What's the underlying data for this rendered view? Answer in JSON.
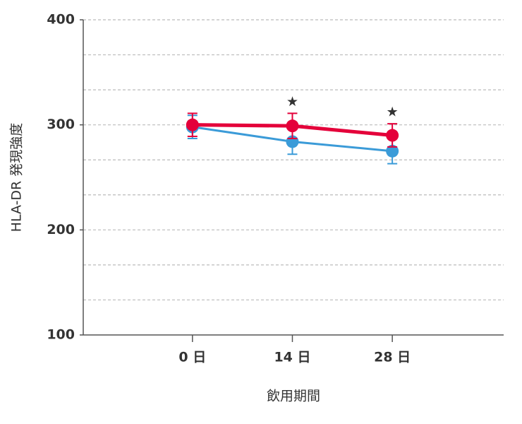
{
  "chart_data": {
    "type": "line",
    "y_label": "HLA-DR 発現強度",
    "x_label": "飲用期間",
    "x": [
      0,
      14,
      28
    ],
    "xlim": [
      -15.3,
      43.6
    ],
    "xticks": [
      {
        "value": 0,
        "label": "0 日"
      },
      {
        "value": 14,
        "label": "14 日"
      },
      {
        "value": 28,
        "label": "28 日"
      }
    ],
    "ylim": [
      100,
      400
    ],
    "yticks": [
      100,
      200,
      300,
      400
    ],
    "minor_yticks": [
      133.33,
      166.67,
      233.33,
      266.67,
      333.33,
      366.67
    ],
    "grid": true,
    "series": [
      {
        "color": "#3b9bd8",
        "values": [
          298,
          284,
          275
        ],
        "errors": [
          11,
          12,
          12
        ]
      },
      {
        "color": "#e4003a",
        "values": [
          300,
          299,
          290
        ],
        "errors": [
          11,
          12,
          11
        ]
      }
    ],
    "annotations": [
      {
        "text": "★",
        "x": 14
      },
      {
        "text": "★",
        "x": 28
      }
    ]
  }
}
